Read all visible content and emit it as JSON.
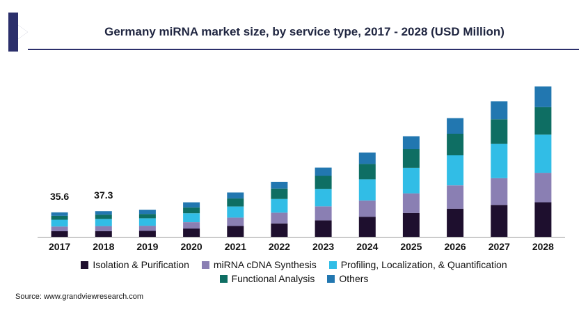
{
  "chart_data": {
    "type": "bar",
    "stacked": true,
    "title": "Germany miRNA market size, by service type, 2017 - 2028 (USD Million)",
    "xlabel": "",
    "ylabel": "",
    "categories": [
      "2017",
      "2018",
      "2019",
      "2020",
      "2021",
      "2022",
      "2023",
      "2024",
      "2025",
      "2026",
      "2027",
      "2028"
    ],
    "totals": [
      35.6,
      37.3,
      39.4,
      50.1,
      64.4,
      80.0,
      100.7,
      122.6,
      146.3,
      172.6,
      197.1,
      218.6
    ],
    "series": [
      {
        "name": "Isolation & Purification",
        "color": "#1e0f2e",
        "values": [
          8.1,
          8.3,
          8.6,
          12.1,
          15.7,
          19.4,
          23.9,
          29.2,
          34.6,
          40.8,
          46.4,
          50.2
        ]
      },
      {
        "name": "miRNA cDNA Synthesis",
        "color": "#8a7fb3",
        "values": [
          6.9,
          7.3,
          7.5,
          9.1,
          12.3,
          15.7,
          20.4,
          23.7,
          28.6,
          34.0,
          38.9,
          42.9
        ]
      },
      {
        "name": "Profiling, Localization, & Quantification",
        "color": "#31bde6",
        "values": [
          9.8,
          10.4,
          10.8,
          13.0,
          16.0,
          19.9,
          25.4,
          30.8,
          37.2,
          43.7,
          49.8,
          55.5
        ]
      },
      {
        "name": "Functional Analysis",
        "color": "#0e6e63",
        "values": [
          5.7,
          6.2,
          6.3,
          8.5,
          11.8,
          15.2,
          18.9,
          22.3,
          27.2,
          31.4,
          35.8,
          40.0
        ]
      },
      {
        "name": "Others",
        "color": "#2277b0",
        "values": [
          5.1,
          5.1,
          6.2,
          7.4,
          8.6,
          9.8,
          12.1,
          16.6,
          18.7,
          22.7,
          26.2,
          30.0
        ]
      }
    ],
    "data_labels": [
      {
        "category": "2017",
        "text": "35.6"
      },
      {
        "category": "2018",
        "text": "37.3"
      }
    ],
    "ylim": [
      0,
      235
    ],
    "grid": false,
    "legend_position": "bottom"
  },
  "source": "Source: www.grandviewresearch.com",
  "colors": {
    "title": "#1f2540",
    "rule": "#2b2f6b",
    "logo": "#2b2f6b"
  }
}
